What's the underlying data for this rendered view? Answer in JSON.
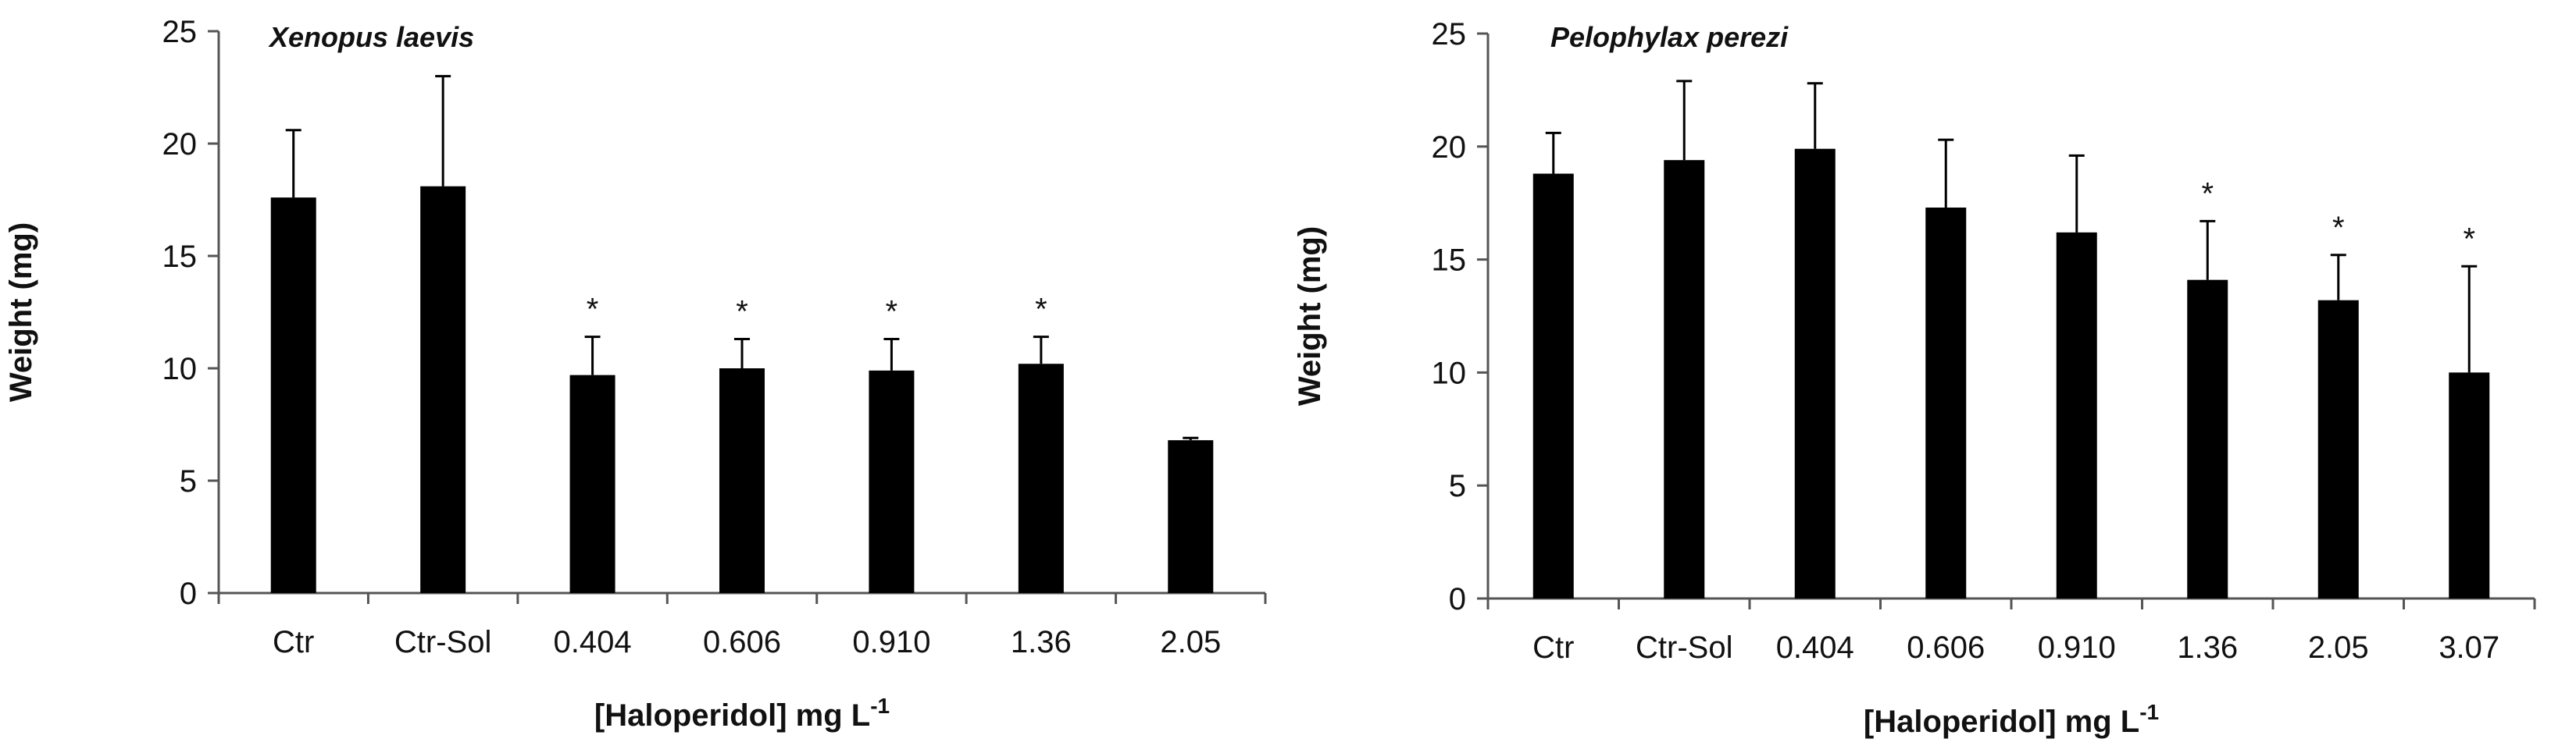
{
  "chart_data": [
    {
      "type": "bar",
      "annotation": "Xenopus laevis",
      "categories": [
        "Ctr",
        "Ctr-Sol",
        "0.404",
        "0.606",
        "0.910",
        "1.36",
        "2.05"
      ],
      "values": [
        17.6,
        18.1,
        9.7,
        10.0,
        9.9,
        10.2,
        6.8
      ],
      "error_upper": [
        3.0,
        4.9,
        1.7,
        1.3,
        1.4,
        1.2,
        0.1
      ],
      "significance": [
        "",
        "",
        "*",
        "*",
        "*",
        "*",
        ""
      ],
      "ylabel": "Weight (mg)",
      "xlabel_main": "[Haloperidol]  mg L",
      "xlabel_sup": "-1",
      "ylim": [
        0,
        25
      ],
      "yticks": [
        0,
        5,
        10,
        15,
        20,
        25
      ],
      "bar_color": "#000000",
      "grid": false,
      "legend": "none"
    },
    {
      "type": "bar",
      "annotation": "Pelophylax perezi",
      "categories": [
        "Ctr",
        "Ctr-Sol",
        "0.404",
        "0.606",
        "0.910",
        "1.36",
        "2.05",
        "3.07"
      ],
      "values": [
        18.8,
        19.4,
        19.9,
        17.3,
        16.2,
        14.1,
        13.2,
        10.0
      ],
      "error_upper": [
        1.8,
        3.5,
        2.9,
        3.0,
        3.4,
        2.6,
        2.0,
        4.7
      ],
      "significance": [
        "",
        "",
        "",
        "",
        "",
        "*",
        "*",
        "*"
      ],
      "ylabel": "Weight (mg)",
      "xlabel_main": "[Haloperidol]  mg L",
      "xlabel_sup": "-1",
      "ylim": [
        0,
        25
      ],
      "yticks": [
        0,
        5,
        10,
        15,
        20,
        25
      ],
      "bar_color": "#000000",
      "grid": false,
      "legend": "none"
    }
  ]
}
